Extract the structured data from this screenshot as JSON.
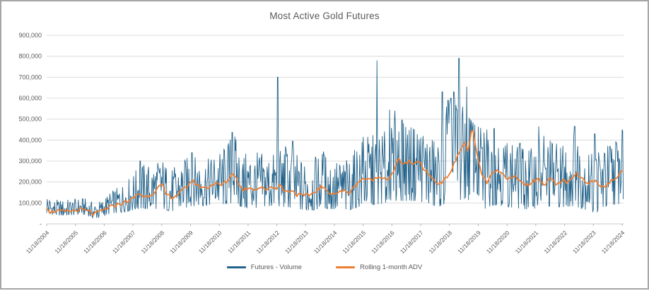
{
  "colors": {
    "volume_blue": "#24638A",
    "adv_orange": "#ED7D31",
    "title_gray": "#595959",
    "gridline": "#DCDCDC",
    "axis_line": "#C8C8C8",
    "tick_mark": "#B5B5B5",
    "frame_border": "#A6A6A6"
  },
  "chart_data": {
    "type": "line",
    "title": "Most Active Gold Futures",
    "xlabel": "",
    "ylabel": "",
    "ylim": [
      0,
      950000
    ],
    "grid": "horizontal",
    "legend_position": "bottom-center",
    "x_axis_note": "daily dates; tick labels every year from 11/18/2004 to 11/18/2024; series t values are years after 11/18/2004",
    "x_tick_labels": [
      "11/18/2004",
      "11/18/2005",
      "11/18/2006",
      "11/18/2007",
      "11/18/2008",
      "11/18/2009",
      "11/18/2010",
      "11/18/2011",
      "11/18/2012",
      "11/18/2013",
      "11/18/2014",
      "11/18/2015",
      "11/18/2016",
      "11/18/2017",
      "11/18/2018",
      "11/18/2019",
      "11/18/2020",
      "11/18/2021",
      "11/18/2022",
      "11/18/2023",
      "11/18/2024"
    ],
    "y_ticks": [
      {
        "value": 0,
        "label": "-"
      },
      {
        "value": 100000,
        "label": "100,000"
      },
      {
        "value": 200000,
        "label": "200,000"
      },
      {
        "value": 300000,
        "label": "300,000"
      },
      {
        "value": 400000,
        "label": "400,000"
      },
      {
        "value": 500000,
        "label": "500,000"
      },
      {
        "value": 600000,
        "label": "600,000"
      },
      {
        "value": 700000,
        "label": "700,000"
      },
      {
        "value": 800000,
        "label": "800,000"
      },
      {
        "value": 900000,
        "label": "900,000"
      }
    ],
    "values_scale_note": "series values stored in thousands of contracts",
    "series": [
      {
        "name": "Futures - Volume",
        "color": "#24638A",
        "style": "daily_noisy_line",
        "envelope_t_min_max": [
          [
            0,
            50,
            150
          ],
          [
            0.3,
            40,
            115
          ],
          [
            0.8,
            42,
            120
          ],
          [
            1.3,
            45,
            125
          ],
          [
            1.6,
            28,
            105
          ],
          [
            1.9,
            30,
            110
          ],
          [
            2.2,
            50,
            150
          ],
          [
            2.6,
            55,
            185
          ],
          [
            3.0,
            65,
            235
          ],
          [
            3.3,
            75,
            295
          ],
          [
            3.7,
            70,
            280
          ],
          [
            4.0,
            75,
            300
          ],
          [
            4.3,
            60,
            260
          ],
          [
            4.7,
            70,
            290
          ],
          [
            5.0,
            85,
            330
          ],
          [
            5.4,
            85,
            300
          ],
          [
            5.8,
            95,
            320
          ],
          [
            6.2,
            95,
            360
          ],
          [
            6.5,
            100,
            430
          ],
          [
            6.8,
            80,
            330
          ],
          [
            7.2,
            75,
            345
          ],
          [
            7.6,
            85,
            330
          ],
          [
            8.0,
            85,
            330
          ],
          [
            8.4,
            80,
            390
          ],
          [
            8.8,
            70,
            320
          ],
          [
            9.2,
            65,
            310
          ],
          [
            9.6,
            75,
            340
          ],
          [
            10.0,
            70,
            300
          ],
          [
            10.4,
            60,
            300
          ],
          [
            10.8,
            80,
            370
          ],
          [
            11.2,
            90,
            420
          ],
          [
            11.6,
            95,
            430
          ],
          [
            12.0,
            110,
            460
          ],
          [
            12.4,
            110,
            480
          ],
          [
            12.8,
            110,
            450
          ],
          [
            13.2,
            100,
            420
          ],
          [
            13.6,
            80,
            380
          ],
          [
            13.9,
            100,
            560
          ],
          [
            14.1,
            110,
            630
          ],
          [
            14.35,
            110,
            590
          ],
          [
            14.6,
            110,
            520
          ],
          [
            14.9,
            100,
            470
          ],
          [
            15.2,
            70,
            450
          ],
          [
            15.5,
            90,
            420
          ],
          [
            15.9,
            85,
            390
          ],
          [
            16.3,
            75,
            370
          ],
          [
            16.7,
            70,
            350
          ],
          [
            17.1,
            75,
            380
          ],
          [
            17.5,
            85,
            400
          ],
          [
            17.9,
            80,
            370
          ],
          [
            18.3,
            85,
            420
          ],
          [
            18.7,
            70,
            350
          ],
          [
            19.0,
            35,
            330
          ],
          [
            19.3,
            80,
            360
          ],
          [
            19.6,
            90,
            400
          ],
          [
            19.9,
            95,
            420
          ],
          [
            20.05,
            120,
            450
          ]
        ],
        "spikes_t_value": [
          [
            3.25,
            300
          ],
          [
            5.05,
            340
          ],
          [
            6.45,
            437
          ],
          [
            8.03,
            700
          ],
          [
            8.3,
            370
          ],
          [
            8.55,
            395
          ],
          [
            9.62,
            345
          ],
          [
            11.0,
            415
          ],
          [
            11.48,
            780
          ],
          [
            11.92,
            545
          ],
          [
            12.1,
            540
          ],
          [
            12.35,
            495
          ],
          [
            13.75,
            630
          ],
          [
            13.9,
            560
          ],
          [
            13.95,
            590
          ],
          [
            14.05,
            600
          ],
          [
            14.15,
            630
          ],
          [
            14.25,
            545
          ],
          [
            14.33,
            790
          ],
          [
            14.6,
            655
          ],
          [
            15.3,
            450
          ],
          [
            15.55,
            455
          ],
          [
            16.45,
            385
          ],
          [
            17.1,
            465
          ],
          [
            17.28,
            420
          ],
          [
            18.35,
            465
          ],
          [
            19.05,
            430
          ],
          [
            20.0,
            450
          ]
        ]
      },
      {
        "name": "Rolling 1-month ADV",
        "color": "#ED7D31",
        "style": "line",
        "points_t_value": [
          [
            0,
            85
          ],
          [
            0.12,
            57
          ],
          [
            0.35,
            62
          ],
          [
            0.6,
            58
          ],
          [
            0.9,
            62
          ],
          [
            1.2,
            69
          ],
          [
            1.45,
            60
          ],
          [
            1.65,
            46
          ],
          [
            1.85,
            58
          ],
          [
            2.1,
            75
          ],
          [
            2.4,
            90
          ],
          [
            2.7,
            102
          ],
          [
            3.0,
            120
          ],
          [
            3.2,
            146
          ],
          [
            3.4,
            128
          ],
          [
            3.65,
            142
          ],
          [
            3.85,
            168
          ],
          [
            4.0,
            188
          ],
          [
            4.15,
            140
          ],
          [
            4.4,
            126
          ],
          [
            4.65,
            150
          ],
          [
            4.85,
            175
          ],
          [
            5.05,
            208
          ],
          [
            5.25,
            182
          ],
          [
            5.55,
            172
          ],
          [
            5.85,
            194
          ],
          [
            6.05,
            183
          ],
          [
            6.3,
            208
          ],
          [
            6.5,
            248
          ],
          [
            6.7,
            182
          ],
          [
            6.85,
            162
          ],
          [
            7.05,
            176
          ],
          [
            7.25,
            164
          ],
          [
            7.45,
            176
          ],
          [
            7.6,
            160
          ],
          [
            7.75,
            178
          ],
          [
            7.95,
            170
          ],
          [
            8.1,
            186
          ],
          [
            8.3,
            152
          ],
          [
            8.5,
            162
          ],
          [
            8.7,
            140
          ],
          [
            8.95,
            133
          ],
          [
            9.2,
            142
          ],
          [
            9.55,
            178
          ],
          [
            9.8,
            150
          ],
          [
            10.05,
            146
          ],
          [
            10.3,
            158
          ],
          [
            10.55,
            150
          ],
          [
            10.8,
            198
          ],
          [
            11.0,
            218
          ],
          [
            11.2,
            208
          ],
          [
            11.45,
            218
          ],
          [
            11.65,
            228
          ],
          [
            11.85,
            212
          ],
          [
            12.05,
            242
          ],
          [
            12.2,
            308
          ],
          [
            12.4,
            288
          ],
          [
            12.6,
            296
          ],
          [
            12.75,
            276
          ],
          [
            12.9,
            306
          ],
          [
            13.1,
            262
          ],
          [
            13.35,
            228
          ],
          [
            13.55,
            194
          ],
          [
            13.8,
            204
          ],
          [
            14.05,
            252
          ],
          [
            14.3,
            328
          ],
          [
            14.5,
            388
          ],
          [
            14.65,
            352
          ],
          [
            14.8,
            462
          ],
          [
            14.95,
            328
          ],
          [
            15.15,
            225
          ],
          [
            15.3,
            198
          ],
          [
            15.5,
            242
          ],
          [
            15.7,
            250
          ],
          [
            15.9,
            232
          ],
          [
            16.1,
            212
          ],
          [
            16.3,
            228
          ],
          [
            16.5,
            196
          ],
          [
            16.7,
            186
          ],
          [
            16.9,
            202
          ],
          [
            17.1,
            214
          ],
          [
            17.3,
            190
          ],
          [
            17.5,
            218
          ],
          [
            17.7,
            186
          ],
          [
            17.95,
            208
          ],
          [
            18.15,
            194
          ],
          [
            18.4,
            242
          ],
          [
            18.6,
            212
          ],
          [
            18.85,
            198
          ],
          [
            19.05,
            210
          ],
          [
            19.25,
            186
          ],
          [
            19.45,
            180
          ],
          [
            19.65,
            208
          ],
          [
            19.85,
            228
          ],
          [
            20.05,
            256
          ]
        ]
      }
    ]
  }
}
